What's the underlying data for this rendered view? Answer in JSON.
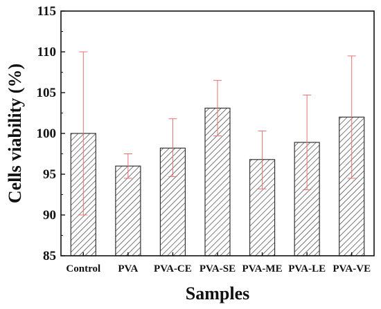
{
  "chart_data": {
    "type": "bar",
    "title": "",
    "xlabel": "Samples",
    "ylabel": "Cells viability (%)",
    "ylim": [
      85,
      115
    ],
    "yticks": [
      85,
      90,
      95,
      100,
      105,
      110,
      115
    ],
    "categories": [
      "Control",
      "PVA",
      "PVA-CE",
      "PVA-SE",
      "PVA-ME",
      "PVA-LE",
      "PVA-VE"
    ],
    "series": [
      {
        "values": [
          100.0,
          96.0,
          98.2,
          103.1,
          96.8,
          98.9,
          102.0
        ],
        "error_upper": [
          110.0,
          97.5,
          101.8,
          106.5,
          100.3,
          104.7,
          109.5
        ],
        "error_lower": [
          90.0,
          94.5,
          94.7,
          99.7,
          93.2,
          93.1,
          94.5
        ]
      }
    ],
    "bar_fill": "hatched",
    "bar_color": "#333333",
    "error_bar_color": "#e87070",
    "grid": false,
    "legend": "none"
  }
}
